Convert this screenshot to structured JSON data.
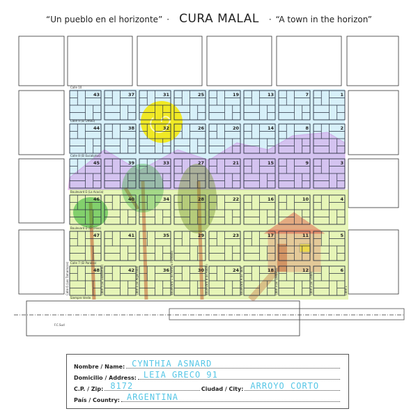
{
  "header": {
    "left_quote": "“Un pueblo en el horizonte”",
    "separator": "·",
    "title": "CURA MALAL",
    "right_quote": "“A town in the horizon”"
  },
  "colors": {
    "sun": "#f5e800",
    "mountains": "#c040d0",
    "grass": "#c8e860",
    "tree_green": "#30b030",
    "trunk": "#c06030",
    "house": "#e02020",
    "sky_blocks": "#70c8e8",
    "handwriting": "#56c6e6"
  },
  "blocks": {
    "columns": [
      [
        "43",
        "44",
        "45",
        "46",
        "47",
        "48"
      ],
      [
        "37",
        "38",
        "39",
        "40",
        "41",
        "42"
      ],
      [
        "31",
        "32",
        "33",
        "34",
        "35",
        "36"
      ],
      [
        "25",
        "26",
        "27",
        "28",
        "29",
        "30"
      ],
      [
        "19",
        "20",
        "21",
        "22",
        "23",
        "24"
      ],
      [
        "13",
        "14",
        "15",
        "16",
        "17",
        "18"
      ],
      [
        "7",
        "8",
        "9",
        "10",
        "11",
        "12"
      ],
      [
        "1",
        "2",
        "3",
        "4",
        "5",
        "6"
      ]
    ]
  },
  "streets": {
    "horizontal": [
      "Calle 10",
      "Calle 9 (El Ombú)",
      "Calle 8 (El Eucaliptus)",
      "Boulevard E (La Acacia)",
      "Boulevard D (El Olivo)",
      "Calle 7 (El Paraíso)",
      "Siempre Verde"
    ],
    "vertical": [
      "Calle 6 (Los Tamariscos)",
      "Calle 5 (El Guatambú)",
      "Calle 4 (El Algarrobo)",
      "Boulevard C (El Arroyo Pareado)",
      "Boulevard B (El Roble)",
      "Boulevard A (El Tala)",
      "Calle 3 (El Castaño)",
      "Calle 2 (El Ceibo)",
      "Calle 1"
    ],
    "railway": "F.C.Sud"
  },
  "form": {
    "name_label": "Nombre / Name:",
    "name_value": "CYNTHIA ASNARD",
    "address_label": "Domicilio / Address:",
    "address_value": "LEIA GRECO 91",
    "zip_label": "C.P. / Zip:",
    "zip_value": "8172",
    "city_label": "Ciudad / City:",
    "city_value": "ARROYO CORTO",
    "country_label": "País / Country:",
    "country_value": "ARGENTINA"
  }
}
